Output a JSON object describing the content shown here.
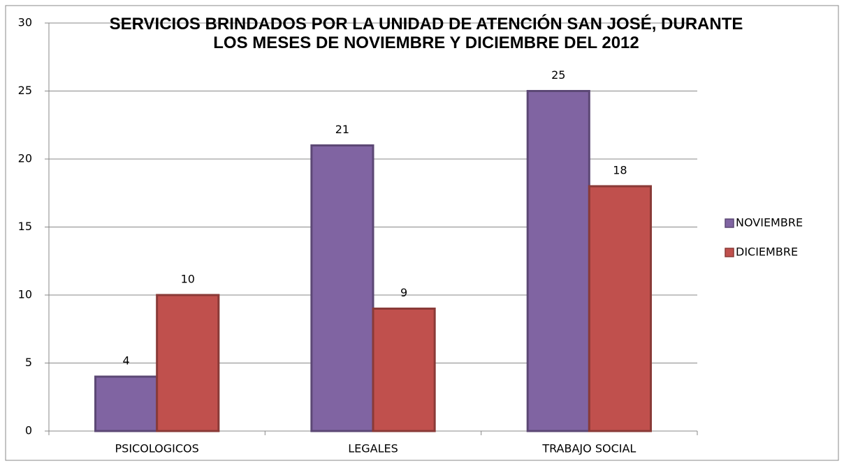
{
  "chart_data": {
    "type": "bar",
    "title": "SERVICIOS BRINDADOS  POR LA UNIDAD DE ATENCIÓN SAN JOSÉ, DURANTE LOS MESES DE NOVIEMBRE Y DICIEMBRE DEL 2012",
    "categories": [
      "PSICOLOGICOS",
      "LEGALES",
      "TRABAJO SOCIAL"
    ],
    "series": [
      {
        "name": "NOVIEMBRE",
        "color": "#8064a2",
        "values": [
          4,
          21,
          25
        ]
      },
      {
        "name": "DICIEMBRE",
        "color": "#c0504d",
        "values": [
          10,
          9,
          18
        ]
      }
    ],
    "ylim": [
      0,
      30
    ],
    "yticks": [
      0,
      5,
      10,
      15,
      20,
      25,
      30
    ],
    "grid": true,
    "legend": "right"
  }
}
